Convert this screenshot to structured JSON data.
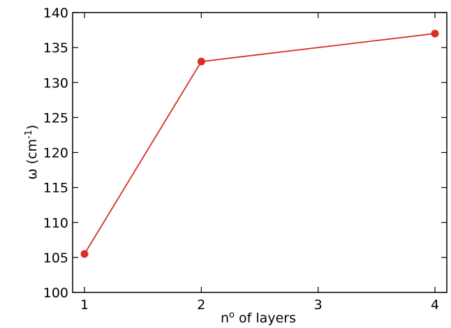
{
  "chart_data": {
    "type": "line",
    "xlabel_pre": "n",
    "xlabel_sup": "o",
    "xlabel_post": " of layers",
    "ylabel_pre": "ω (cm",
    "ylabel_sup": "-1",
    "ylabel_post": ")",
    "xlim": [
      1,
      4
    ],
    "ylim": [
      100,
      140
    ],
    "xticks": [
      1,
      2,
      3,
      4
    ],
    "yticks": [
      100,
      105,
      110,
      115,
      120,
      125,
      130,
      135,
      140
    ],
    "grid": false,
    "series": [
      {
        "color": "#d93025",
        "x": [
          1,
          2,
          4
        ],
        "y": [
          105.5,
          133,
          137
        ]
      }
    ]
  }
}
